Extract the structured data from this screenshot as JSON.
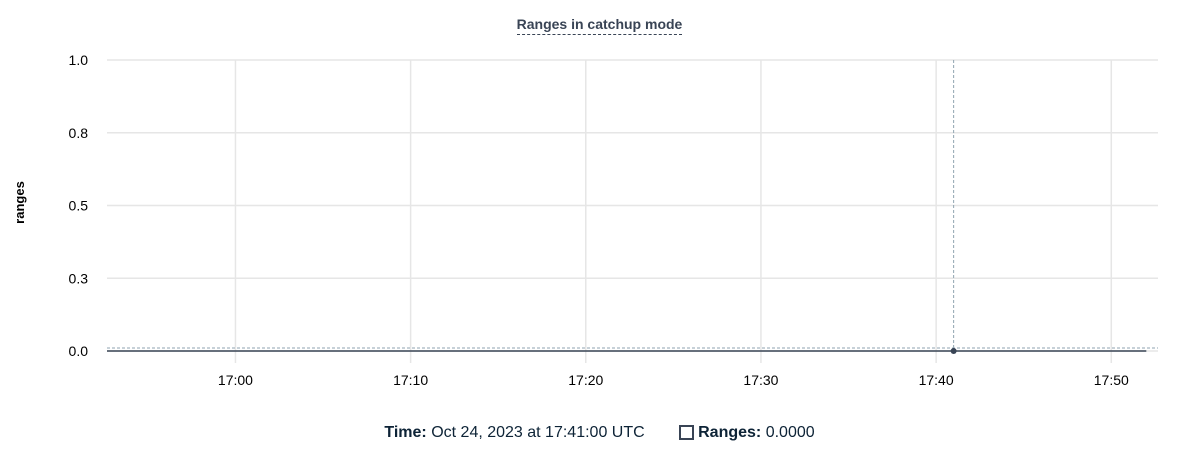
{
  "chart_data": {
    "type": "line",
    "title": "Ranges in catchup mode",
    "ylabel": "ranges",
    "xlabel": "",
    "ylim": [
      0,
      1
    ],
    "yticks": [
      {
        "value": 0,
        "label": "0.0"
      },
      {
        "value": 0.25,
        "label": "0.3"
      },
      {
        "value": 0.5,
        "label": "0.5"
      },
      {
        "value": 0.75,
        "label": "0.8"
      },
      {
        "value": 1,
        "label": "1.0"
      }
    ],
    "xlim": [
      "16:52:40",
      "17:52:40"
    ],
    "xticks": [
      "17:00",
      "17:10",
      "17:20",
      "17:30",
      "17:40",
      "17:50"
    ],
    "grid": true,
    "series": [
      {
        "name": "Ranges",
        "color": "#394455",
        "x": [
          "16:52:40",
          "17:52:00"
        ],
        "y": [
          0,
          0
        ]
      }
    ],
    "hover": {
      "x": "17:41:00",
      "y": 0
    }
  },
  "legend": {
    "time_label": "Time:",
    "time_value": "Oct 24, 2023 at 17:41:00 UTC",
    "series_label": "Ranges:",
    "series_value": "0.0000"
  }
}
